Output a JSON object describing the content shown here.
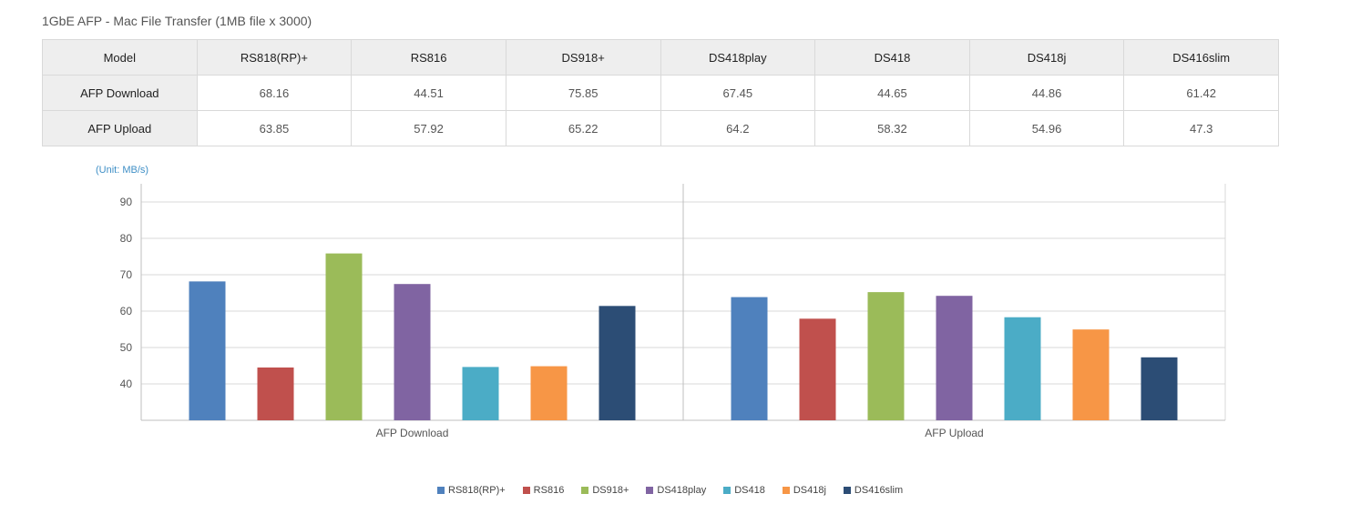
{
  "title": "1GbE AFP - Mac File Transfer (1MB file x 3000)",
  "table": {
    "header_label": "Model",
    "models": [
      "RS818(RP)+",
      "RS816",
      "DS918+",
      "DS418play",
      "DS418",
      "DS418j",
      "DS416slim"
    ],
    "rows": [
      {
        "label": "AFP Download",
        "values": [
          "68.16",
          "44.51",
          "75.85",
          "67.45",
          "44.65",
          "44.86",
          "61.42"
        ]
      },
      {
        "label": "AFP Upload",
        "values": [
          "63.85",
          "57.92",
          "65.22",
          "64.2",
          "58.32",
          "54.96",
          "47.3"
        ]
      }
    ]
  },
  "unit_label": "(Unit: MB/s)",
  "chart_data": {
    "type": "bar",
    "categories": [
      "AFP Download",
      "AFP Upload"
    ],
    "series": [
      {
        "name": "RS818(RP)+",
        "values": [
          68.16,
          63.85
        ],
        "color": "#4f81bd"
      },
      {
        "name": "RS816",
        "values": [
          44.51,
          57.92
        ],
        "color": "#c0504d"
      },
      {
        "name": "DS918+",
        "values": [
          75.85,
          65.22
        ],
        "color": "#9bbb59"
      },
      {
        "name": "DS418play",
        "values": [
          67.45,
          64.2
        ],
        "color": "#8064a2"
      },
      {
        "name": "DS418",
        "values": [
          44.65,
          58.32
        ],
        "color": "#4bacc6"
      },
      {
        "name": "DS418j",
        "values": [
          44.86,
          54.96
        ],
        "color": "#f79646"
      },
      {
        "name": "DS416slim",
        "values": [
          61.42,
          47.3
        ],
        "color": "#2c4d75"
      }
    ],
    "ylim": [
      30,
      95
    ],
    "yticks": [
      40,
      50,
      60,
      70,
      80,
      90
    ],
    "grid": true,
    "legend": "bottom"
  }
}
